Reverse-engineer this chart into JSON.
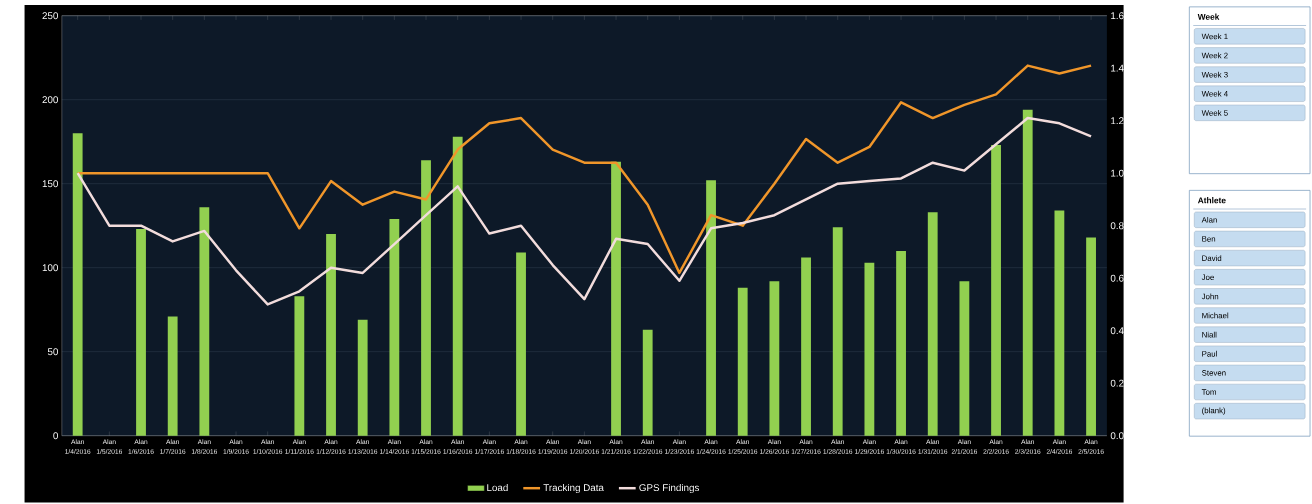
{
  "chart_data": [
    {
      "type": "bar",
      "categories": [
        "Alan 1/4/2016",
        "Alan 1/5/2016",
        "Alan 1/6/2016",
        "Alan 1/7/2016",
        "Alan 1/8/2016",
        "Alan 1/9/2016",
        "Alan 1/10/2016",
        "Alan 1/11/2016",
        "Alan 1/12/2016",
        "Alan 1/13/2016",
        "Alan 1/14/2016",
        "Alan 1/15/2016",
        "Alan 1/16/2016",
        "Alan 1/17/2016",
        "Alan 1/18/2016",
        "Alan 1/19/2016",
        "Alan 1/20/2016",
        "Alan 1/21/2016",
        "Alan 1/22/2016",
        "Alan 1/23/2016",
        "Alan 1/24/2016",
        "Alan 1/25/2016",
        "Alan 1/26/2016",
        "Alan 1/27/2016",
        "Alan 1/28/2016",
        "Alan 1/29/2016",
        "Alan 1/30/2016",
        "Alan 1/31/2016",
        "Alan 2/1/2016",
        "Alan 2/2/2016",
        "Alan 2/3/2016",
        "Alan 2/4/2016",
        "Alan 2/5/2016"
      ],
      "series": [
        {
          "name": "Load",
          "type": "bar",
          "color": "#92d050",
          "values": [
            180,
            null,
            123,
            71,
            136,
            null,
            null,
            83,
            120,
            69,
            129,
            164,
            178,
            null,
            109,
            null,
            null,
            163,
            63,
            null,
            152,
            88,
            92,
            106,
            124,
            103,
            110,
            133,
            92,
            173,
            194,
            134,
            118
          ]
        },
        {
          "name": "Tracking Data",
          "type": "line",
          "axis": "y2",
          "color": "#f0962a",
          "values": [
            1.0,
            1.0,
            1.0,
            1.0,
            1.0,
            1.0,
            1.0,
            0.79,
            0.97,
            0.88,
            0.93,
            0.9,
            1.09,
            1.19,
            1.21,
            1.09,
            1.04,
            1.04,
            0.88,
            0.62,
            0.84,
            0.8,
            0.96,
            1.13,
            1.04,
            1.1,
            1.27,
            1.21,
            1.26,
            1.3,
            1.41,
            1.38,
            1.41
          ]
        },
        {
          "name": "GPS Findings",
          "type": "line",
          "axis": "y2",
          "color": "#f2dcdc",
          "values": [
            1.0,
            0.8,
            0.8,
            0.74,
            0.78,
            0.63,
            0.5,
            0.55,
            0.64,
            0.62,
            0.73,
            0.84,
            0.95,
            0.77,
            0.8,
            0.65,
            0.52,
            0.75,
            0.73,
            0.59,
            0.79,
            0.81,
            0.84,
            0.9,
            0.96,
            0.97,
            0.98,
            1.04,
            1.01,
            1.11,
            1.21,
            1.19,
            1.14
          ]
        }
      ],
      "ylim": [
        0,
        250
      ],
      "yticks": [
        0,
        50,
        100,
        150,
        200,
        250
      ],
      "y2lim": [
        0,
        1.6
      ],
      "y2ticks": [
        {
          "value": 0,
          "label": "0.0"
        },
        {
          "value": 0.2,
          "label": "0.2"
        },
        {
          "value": 0.4,
          "label": "0.4"
        },
        {
          "value": 0.6,
          "label": "0.6"
        },
        {
          "value": 0.8,
          "label": "0.8"
        },
        {
          "value": 1.0,
          "label": "1.0"
        },
        {
          "value": 1.2,
          "label": "1.2"
        },
        {
          "value": 1.4,
          "label": "1.4"
        },
        {
          "value": 1.6,
          "label": "1.6"
        }
      ],
      "grid": "y",
      "legend": "bottom"
    },
    {
      "type": "other",
      "title": "Week",
      "annotations": [
        "Week 1",
        "Week 2",
        "Week 3",
        "Week 4",
        "Week 5"
      ]
    },
    {
      "type": "other",
      "title": "Athlete",
      "annotations": [
        "Alan",
        "Ben",
        "David",
        "Joe",
        "John",
        "Michael",
        "Niall",
        "Paul",
        "Steven",
        "Tom",
        "(blank)"
      ]
    }
  ]
}
